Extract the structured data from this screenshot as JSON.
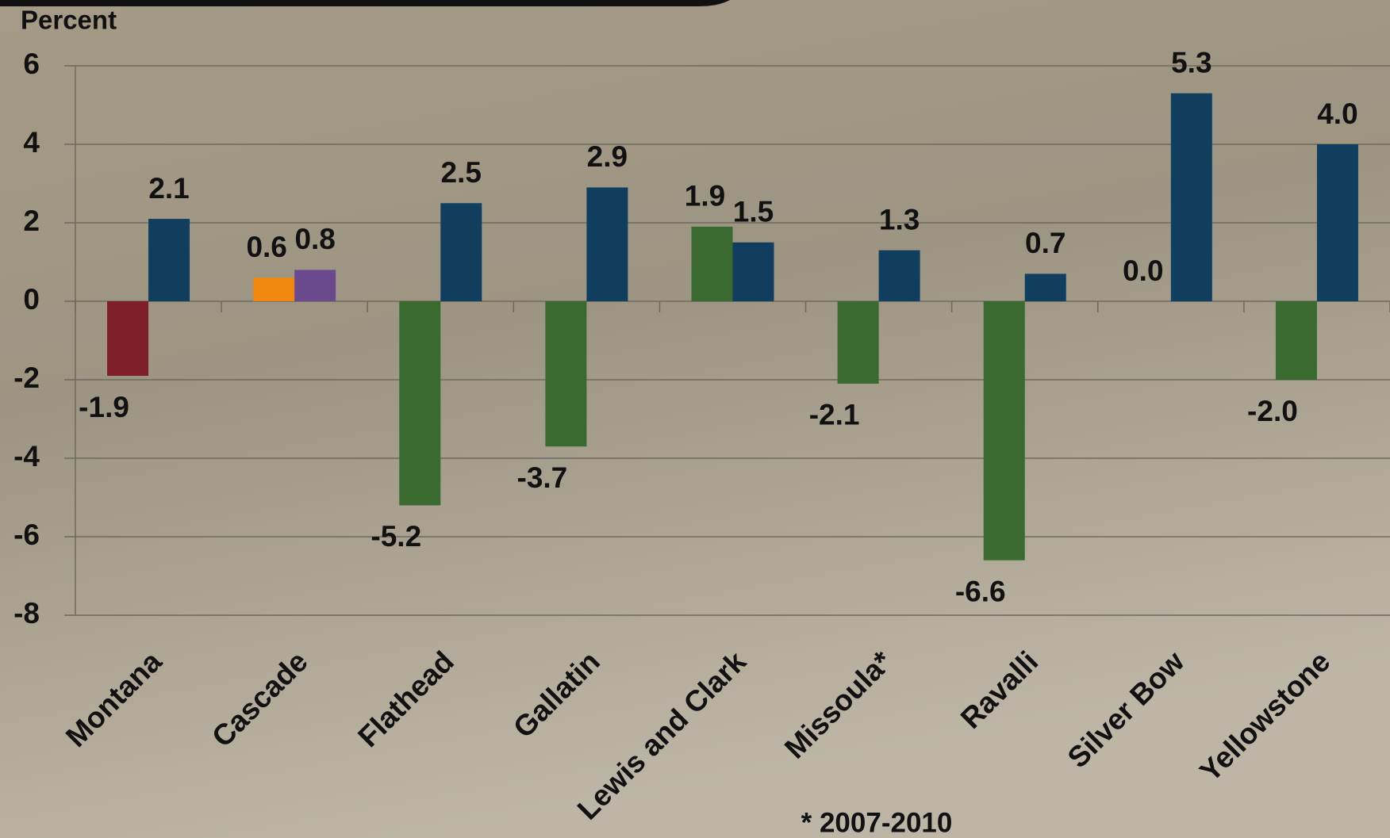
{
  "chart_data": {
    "type": "bar",
    "y_label": "Percent",
    "footnote": "* 2007-2010",
    "categories": [
      "Montana",
      "Cascade",
      "Flathead",
      "Gallatin",
      "Lewis and Clark",
      "Missoula*",
      "Ravalli",
      "Silver Bow",
      "Yellowstone"
    ],
    "series": [
      {
        "colors": [
          "#7d1e28",
          "#f0870f",
          "#3b6a30",
          "#3b6a30",
          "#3b6a30",
          "#3b6a30",
          "#3b6a30",
          "#3b6a30",
          "#3b6a30"
        ],
        "values": [
          -1.9,
          0.6,
          -5.2,
          -3.7,
          1.9,
          -2.1,
          -6.6,
          0,
          -2.0
        ],
        "value_labels": [
          "-1.9",
          "0.6",
          "-5.2",
          "-3.7",
          "1.9",
          "-2.1",
          "-6.6",
          "0.0",
          "-2.0"
        ]
      },
      {
        "colors": [
          "#113e5e",
          "#6a4a8c",
          "#113e5e",
          "#113e5e",
          "#113e5e",
          "#113e5e",
          "#113e5e",
          "#113e5e",
          "#113e5e"
        ],
        "values": [
          2.1,
          0.8,
          2.5,
          2.9,
          1.5,
          1.3,
          0.7,
          5.3,
          4.0
        ],
        "value_labels": [
          "2.1",
          "0.8",
          "2.5",
          "2.9",
          "1.5",
          "1.3",
          "0.7",
          "5.3",
          "4.0"
        ]
      }
    ],
    "ylim": [
      -8,
      6
    ],
    "yticks": [
      -8,
      -6,
      -4,
      -2,
      0,
      2,
      4,
      6
    ],
    "grid": true
  }
}
